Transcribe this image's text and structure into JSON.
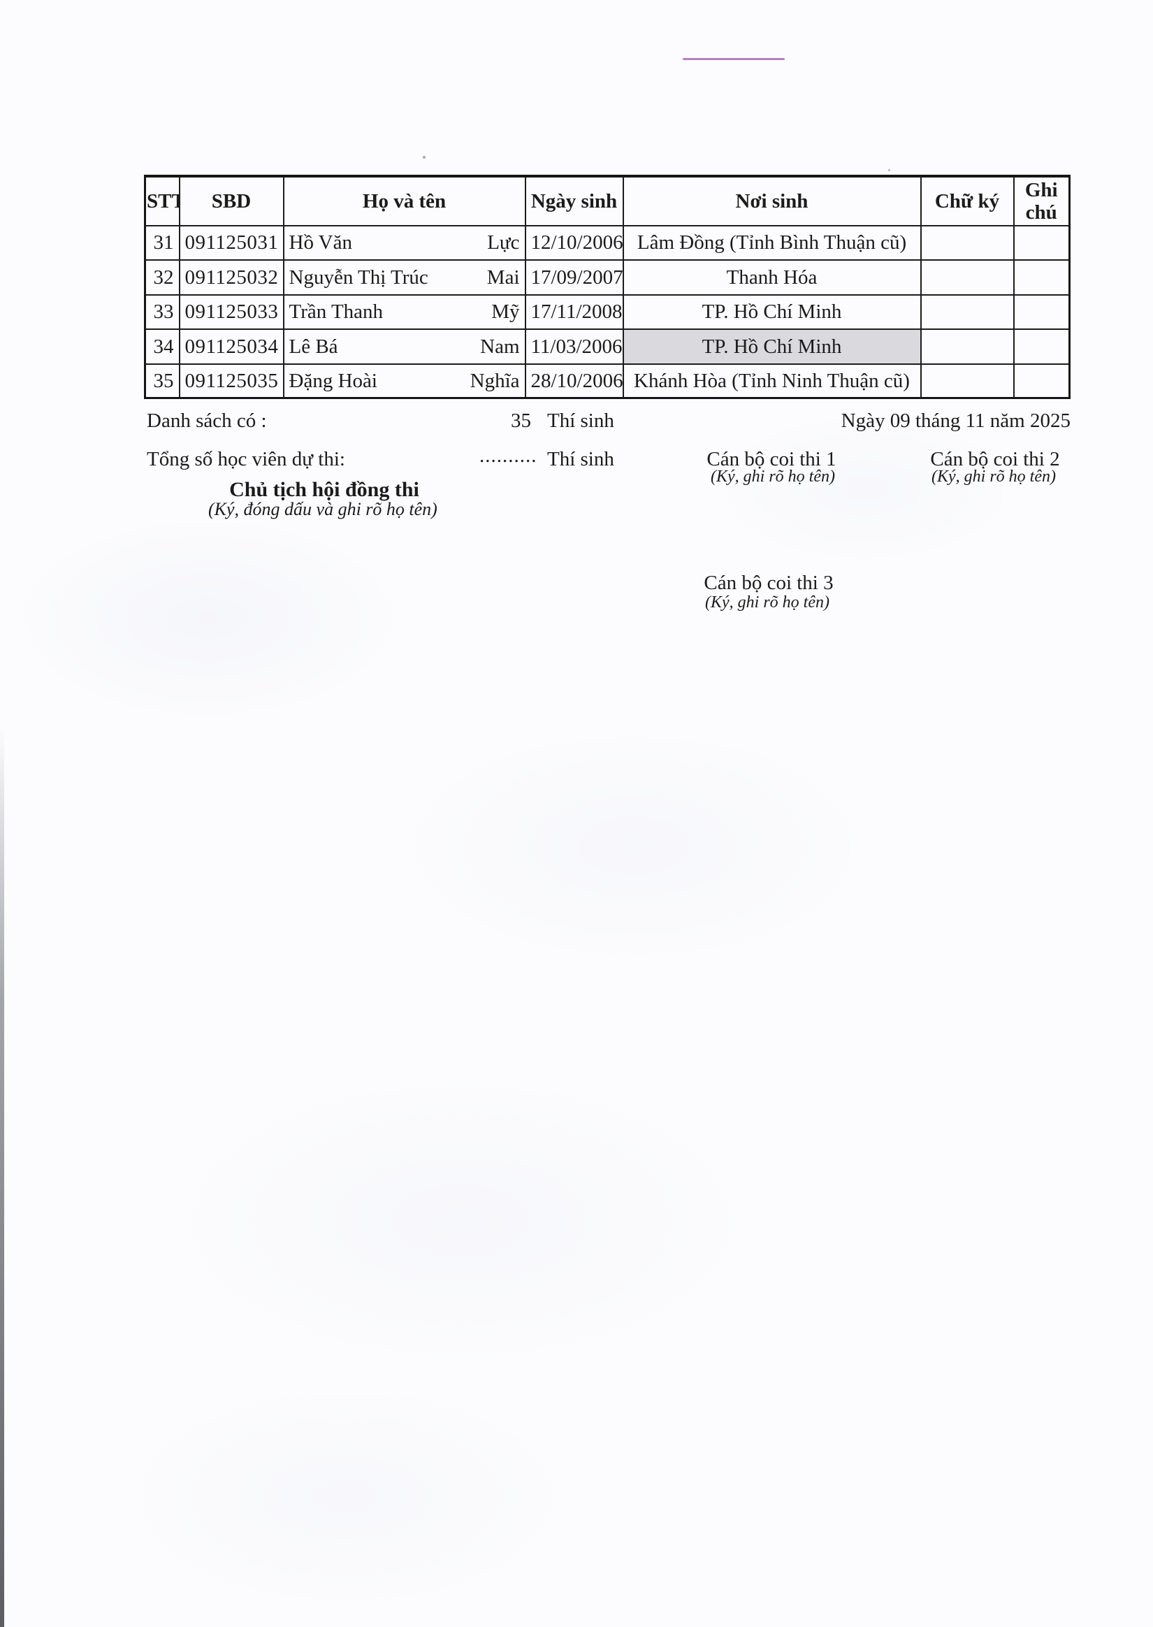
{
  "table": {
    "headers": {
      "stt": "STT",
      "sbd": "SBD",
      "name": "Họ và tên",
      "dob": "Ngày sinh",
      "birthplace": "Nơi sinh",
      "signature": "Chữ ký",
      "note": "Ghi chú"
    },
    "rows": [
      {
        "stt": "31",
        "sbd": "091125031",
        "first": "Hồ Văn",
        "last": "Lực",
        "dob": "12/10/2006",
        "birthplace": "Lâm Đồng (Tỉnh Bình Thuận cũ)",
        "signature": "",
        "note": "",
        "birthplace_highlight": false
      },
      {
        "stt": "32",
        "sbd": "091125032",
        "first": "Nguyễn Thị Trúc",
        "last": "Mai",
        "dob": "17/09/2007",
        "birthplace": "Thanh Hóa",
        "signature": "",
        "note": "",
        "birthplace_highlight": false
      },
      {
        "stt": "33",
        "sbd": "091125033",
        "first": "Trần Thanh",
        "last": "Mỹ",
        "dob": "17/11/2008",
        "birthplace": "TP. Hồ Chí Minh",
        "signature": "",
        "note": "",
        "birthplace_highlight": false
      },
      {
        "stt": "34",
        "sbd": "091125034",
        "first": "Lê Bá",
        "last": "Nam",
        "dob": "11/03/2006",
        "birthplace": "TP. Hồ Chí Minh",
        "signature": "",
        "note": "",
        "birthplace_highlight": true
      },
      {
        "stt": "35",
        "sbd": "091125035",
        "first": "Đặng Hoài",
        "last": "Nghĩa",
        "dob": "28/10/2006",
        "birthplace": "Khánh Hòa (Tỉnh Ninh Thuận cũ)",
        "signature": "",
        "note": "",
        "birthplace_highlight": false
      }
    ]
  },
  "summary": {
    "list_count_label": "Danh sách có :",
    "list_count_value": "35",
    "list_count_unit": "Thí sinh",
    "date_line": "Ngày 09 tháng 11 năm 2025",
    "total_label": "Tổng số học viên dự thi:",
    "total_dots": "..........",
    "total_unit": "Thí sinh"
  },
  "signatures": {
    "chairman_title": "Chủ tịch hội đồng thi",
    "chairman_note": "(Ký, đóng dấu và ghi rõ họ tên)",
    "proctor1_title": "Cán bộ coi thi 1",
    "proctor1_note": "(Ký, ghi rõ họ tên)",
    "proctor2_title": "Cán bộ coi thi 2",
    "proctor2_note": "(Ký, ghi rõ họ tên)",
    "proctor3_title": "Cán bộ coi thi 3",
    "proctor3_note": "(Ký, ghi rõ họ tên)"
  },
  "colors": {
    "highlight_cell": "#d9d9de",
    "scan_artifact_line": "#b77fc1"
  }
}
